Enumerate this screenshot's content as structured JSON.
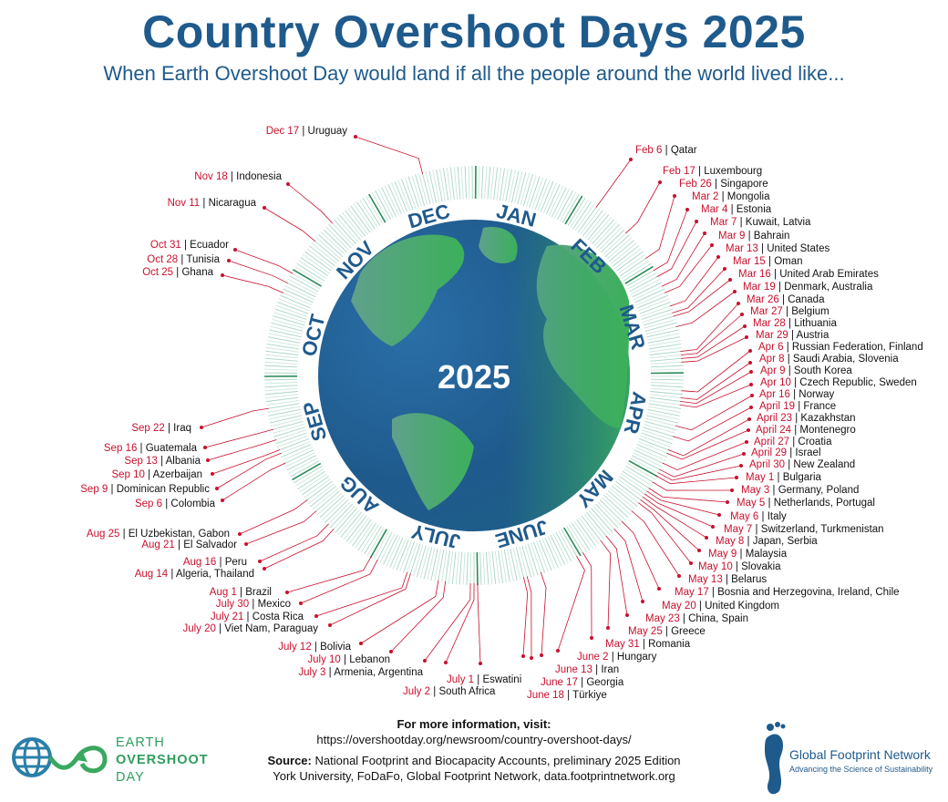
{
  "title": "Country Overshoot Days 2025",
  "subtitle": "When Earth Overshoot Day would land if all the people around the world lived like...",
  "center_year": "2025",
  "months": [
    "JAN",
    "FEB",
    "MAR",
    "APR",
    "MAY",
    "JUNE",
    "JULY",
    "AUG",
    "SEP",
    "OCT",
    "NOV",
    "DEC"
  ],
  "colors": {
    "title": "#1f5a8c",
    "date": "#c8102e",
    "leader_line": "#c8102e",
    "ring_tick": "#a8d5c4",
    "month_tick": "#2a8a5a",
    "globe_ocean": "#1f5a8c",
    "globe_land": "#3aa860"
  },
  "entries": [
    {
      "date": "Feb 6",
      "country": "Qatar"
    },
    {
      "date": "Feb 17",
      "country": "Luxembourg"
    },
    {
      "date": "Feb 26",
      "country": "Singapore"
    },
    {
      "date": "Mar 2",
      "country": "Mongolia"
    },
    {
      "date": "Mar 4",
      "country": "Estonia"
    },
    {
      "date": "Mar 7",
      "country": "Kuwait, Latvia"
    },
    {
      "date": "Mar 9",
      "country": "Bahrain"
    },
    {
      "date": "Mar 13",
      "country": "United States"
    },
    {
      "date": "Mar 15",
      "country": "Oman"
    },
    {
      "date": "Mar 16",
      "country": "United Arab Emirates"
    },
    {
      "date": "Mar 19",
      "country": "Denmark, Australia"
    },
    {
      "date": "Mar 26",
      "country": "Canada"
    },
    {
      "date": "Mar 27",
      "country": "Belgium"
    },
    {
      "date": "Mar 28",
      "country": "Lithuania"
    },
    {
      "date": "Mar 29",
      "country": "Austria"
    },
    {
      "date": "Apr 6",
      "country": "Russian Federation, Finland"
    },
    {
      "date": "Apr 8",
      "country": "Saudi Arabia, Slovenia"
    },
    {
      "date": "Apr 9",
      "country": "South Korea"
    },
    {
      "date": "Apr 10",
      "country": "Czech Republic, Sweden"
    },
    {
      "date": "Apr 16",
      "country": "Norway"
    },
    {
      "date": "April 19",
      "country": "France"
    },
    {
      "date": "April 23",
      "country": "Kazakhstan"
    },
    {
      "date": "April 24",
      "country": "Montenegro"
    },
    {
      "date": "April 27",
      "country": "Croatia"
    },
    {
      "date": "April 29",
      "country": "Israel"
    },
    {
      "date": "April 30",
      "country": "New Zealand"
    },
    {
      "date": "May 1",
      "country": "Bulgaria"
    },
    {
      "date": "May 3",
      "country": "Germany, Poland"
    },
    {
      "date": "May 5",
      "country": "Netherlands, Portugal"
    },
    {
      "date": "May 6",
      "country": "Italy"
    },
    {
      "date": "May 7",
      "country": "Switzerland, Turkmenistan"
    },
    {
      "date": "May 8",
      "country": "Japan, Serbia"
    },
    {
      "date": "May 9",
      "country": "Malaysia"
    },
    {
      "date": "May 10",
      "country": "Slovakia"
    },
    {
      "date": "May 13",
      "country": "Belarus"
    },
    {
      "date": "May 17",
      "country": "Bosnia and Herzegovina, Ireland, Chile"
    },
    {
      "date": "May 20",
      "country": "United Kingdom"
    },
    {
      "date": "May 23",
      "country": "China, Spain"
    },
    {
      "date": "May 25",
      "country": "Greece"
    },
    {
      "date": "May 31",
      "country": "Romania"
    },
    {
      "date": "June 2",
      "country": "Hungary"
    },
    {
      "date": "June 13",
      "country": "Iran"
    },
    {
      "date": "June 17",
      "country": "Georgia"
    },
    {
      "date": "June 18",
      "country": "Türkiye"
    },
    {
      "date": "July 1",
      "country": "Eswatini"
    },
    {
      "date": "July 2",
      "country": "South Africa"
    },
    {
      "date": "July 3",
      "country": "Armenia, Argentina"
    },
    {
      "date": "July 10",
      "country": "Lebanon"
    },
    {
      "date": "July 12",
      "country": "Bolivia"
    },
    {
      "date": "July 20",
      "country": "Viet Nam, Paraguay"
    },
    {
      "date": "July 21",
      "country": "Costa Rica"
    },
    {
      "date": "July 30",
      "country": "Mexico"
    },
    {
      "date": "Aug 1",
      "country": "Brazil"
    },
    {
      "date": "Aug 14",
      "country": "Algeria, Thailand"
    },
    {
      "date": "Aug 16",
      "country": "Peru"
    },
    {
      "date": "Aug 21",
      "country": "El Salvador"
    },
    {
      "date": "Aug 25",
      "country": "El Uzbekistan, Gabon"
    },
    {
      "date": "Sep 6",
      "country": "Colombia"
    },
    {
      "date": "Sep 9",
      "country": "Dominican Republic"
    },
    {
      "date": "Sep 10",
      "country": "Azerbaijan"
    },
    {
      "date": "Sep 13",
      "country": "Albania"
    },
    {
      "date": "Sep 16",
      "country": "Guatemala"
    },
    {
      "date": "Sep 22",
      "country": "Iraq"
    },
    {
      "date": "Oct 25",
      "country": "Ghana"
    },
    {
      "date": "Oct 28",
      "country": "Tunisia"
    },
    {
      "date": "Oct 31",
      "country": "Ecuador"
    },
    {
      "date": "Nov 11",
      "country": "Nicaragua"
    },
    {
      "date": "Nov 18",
      "country": "Indonesia"
    },
    {
      "date": "Dec 17",
      "country": "Uruguay"
    }
  ],
  "footer": {
    "more_info_label": "For more information, visit:",
    "url": "https://overshootday.org/newsroom/country-overshoot-days/",
    "source_label": "Source:",
    "source_text": "National Footprint and Biocapacity Accounts, preliminary 2025 Edition",
    "source_line2": "York University, FoDaFo, Global Footprint Network, data.footprintnetwork.org",
    "eod_logo": {
      "line1": "EARTH",
      "line2": "OVERSHOOT",
      "line3": "DAY"
    },
    "gfn_logo": {
      "name": "Global Footprint Network",
      "tagline": "Advancing the Science of Sustainability"
    }
  }
}
